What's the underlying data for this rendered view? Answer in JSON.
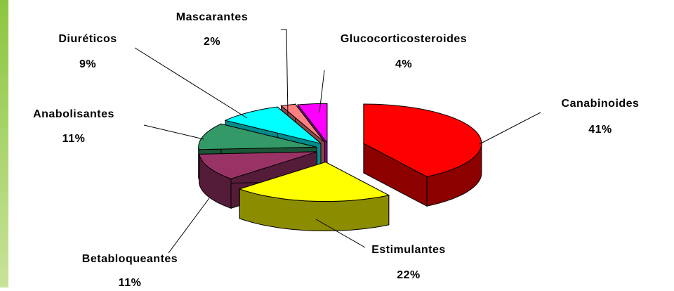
{
  "chart_data": {
    "type": "pie3d",
    "categories": [
      "Canabinoides",
      "Estimulantes",
      "Betabloqueantes",
      "Anabolisantes",
      "Diuréticos",
      "Mascarantes",
      "Glucocorticosteroides"
    ],
    "values": [
      41,
      22,
      11,
      11,
      9,
      2,
      4
    ],
    "value_labels": [
      "41%",
      "22%",
      "11%",
      "11%",
      "9%",
      "2%",
      "4%"
    ],
    "colors": [
      "#ff0000",
      "#ffff00",
      "#993366",
      "#339966",
      "#00ffff",
      "#ff8080",
      "#ff00ff"
    ]
  }
}
